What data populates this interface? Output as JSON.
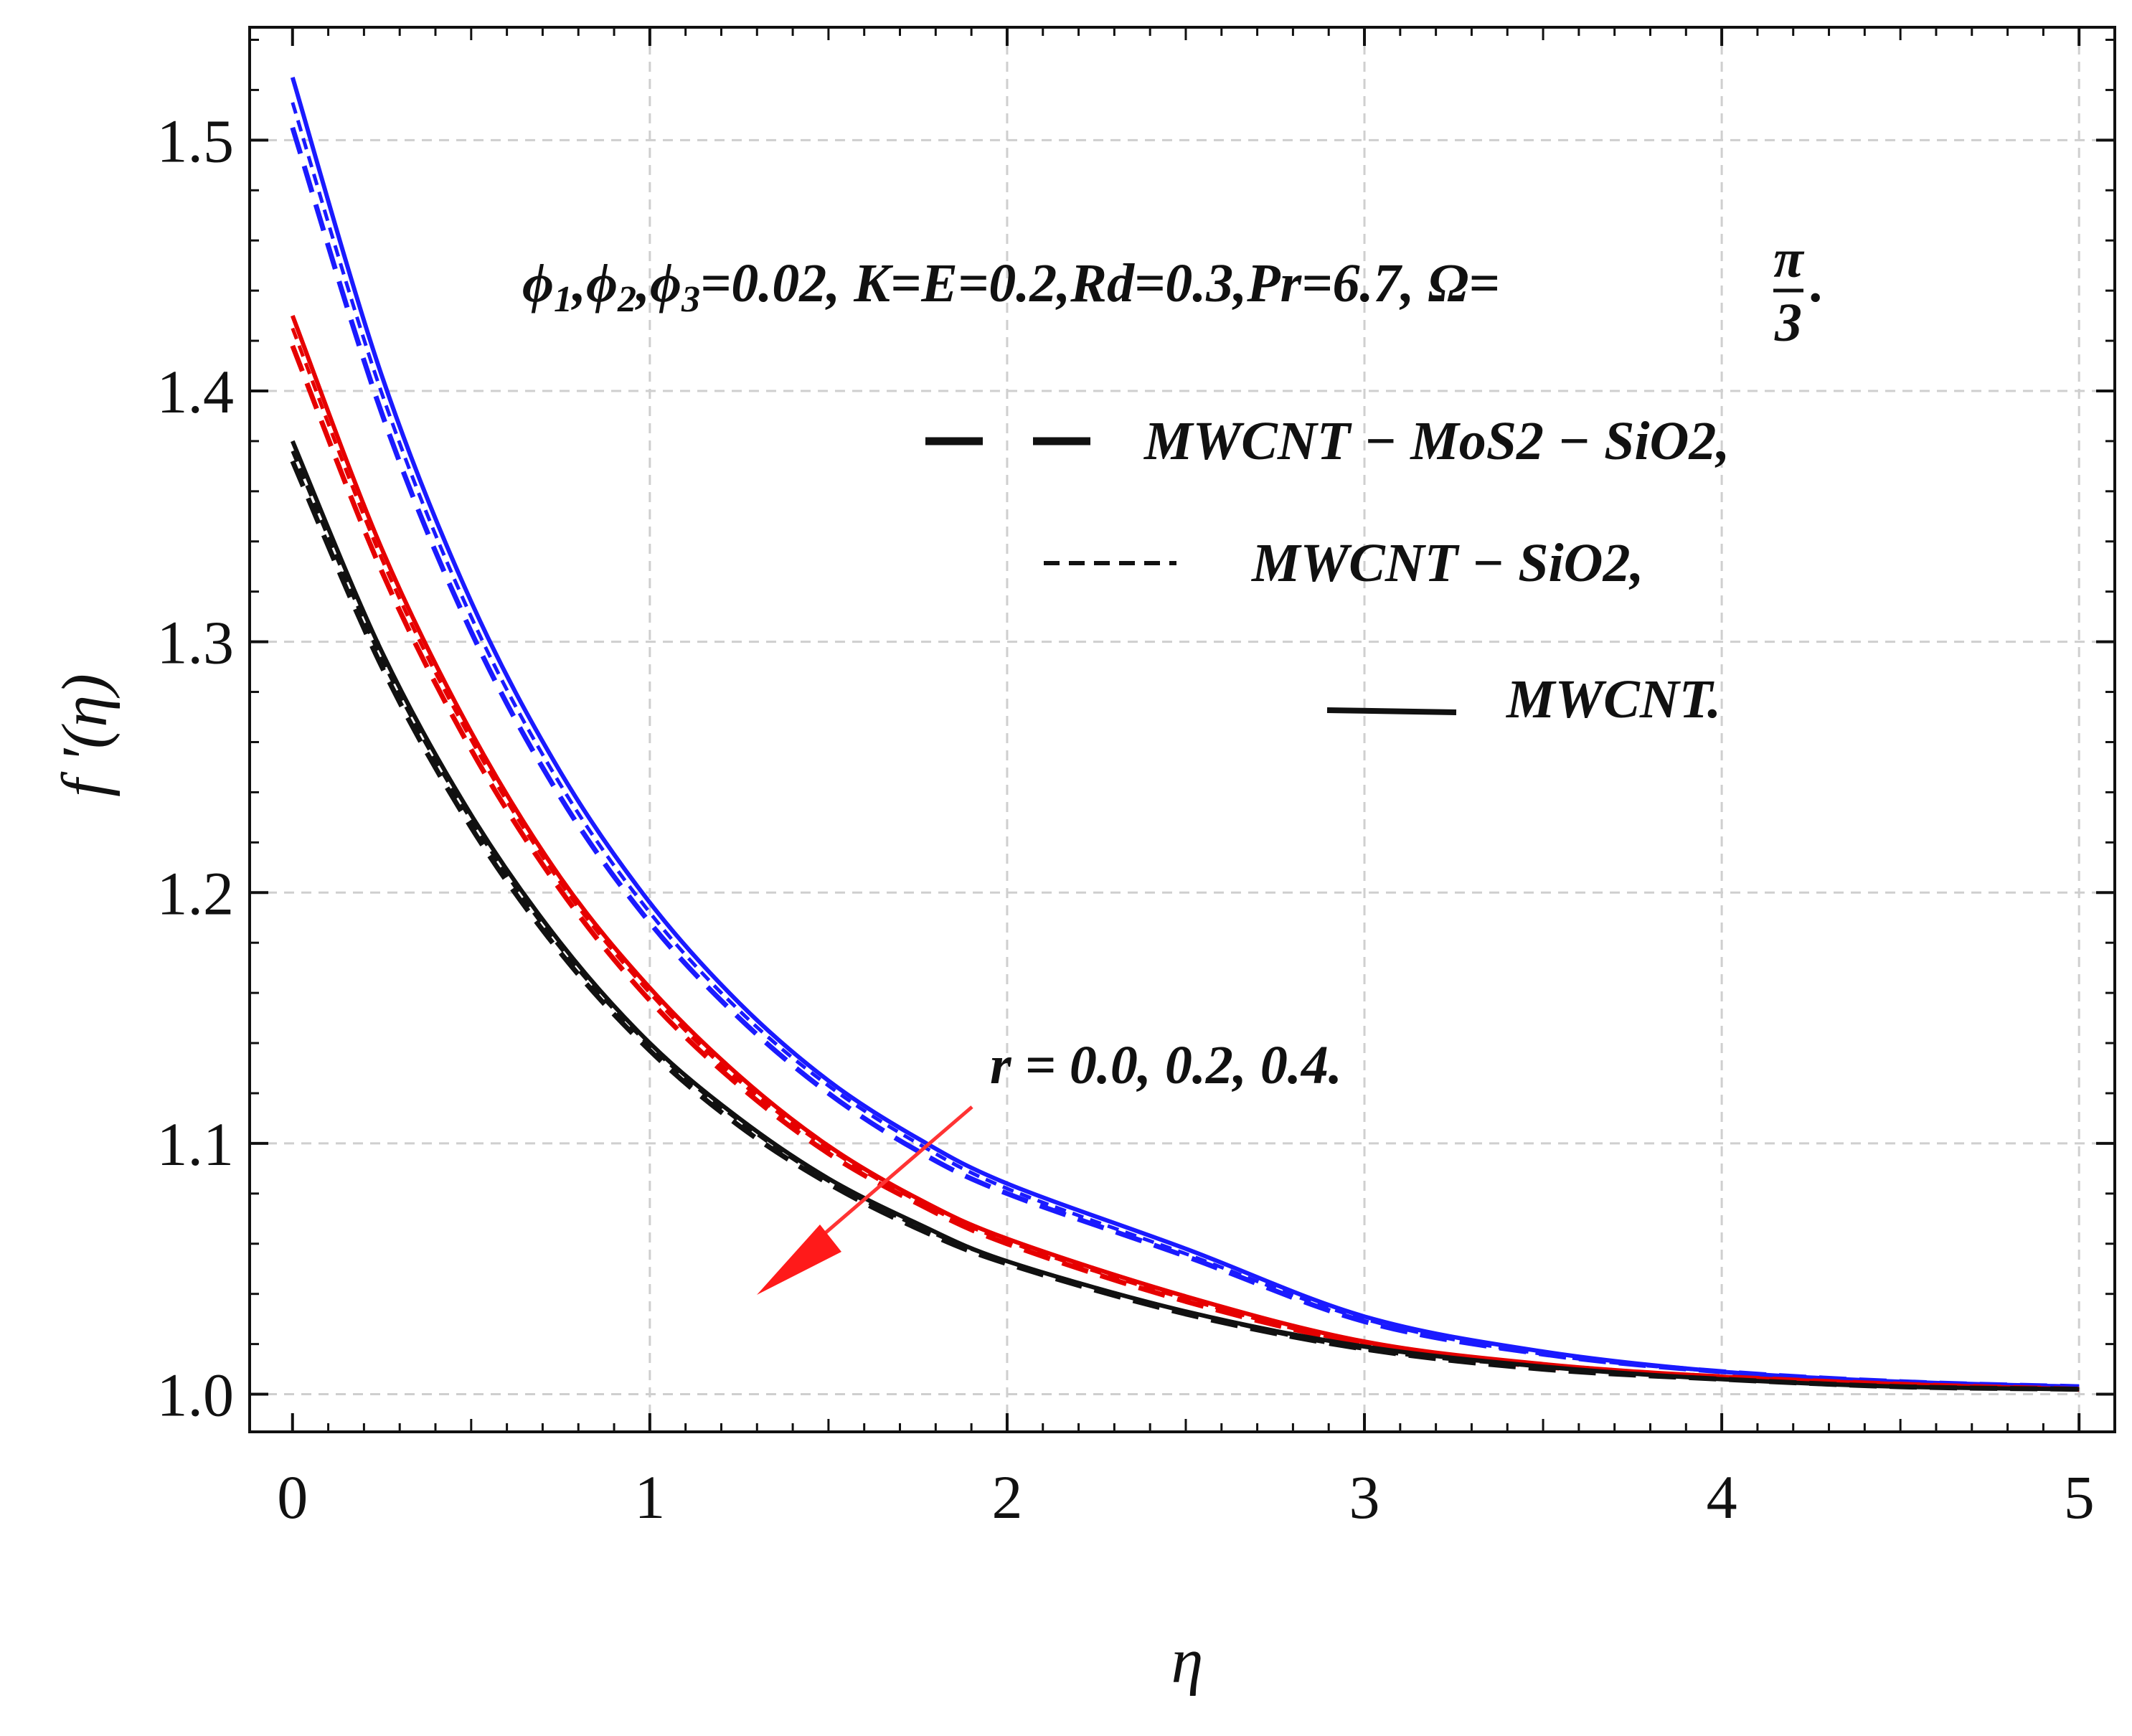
{
  "chart_data": {
    "type": "line",
    "xlabel": "η",
    "ylabel": "f ′(η)",
    "xlim": [
      -0.12,
      5.1
    ],
    "ylim": [
      0.985,
      1.545
    ],
    "x_ticks": [
      0,
      1,
      2,
      3,
      4,
      5
    ],
    "x_tick_labels": [
      "0",
      "1",
      "2",
      "3",
      "4",
      "5"
    ],
    "y_ticks": [
      1.0,
      1.1,
      1.2,
      1.3,
      1.4,
      1.5
    ],
    "y_tick_labels": [
      "1.0",
      "1.1",
      "1.2",
      "1.3",
      "1.4",
      "1.5"
    ],
    "grid": true,
    "x": [
      0,
      0.25,
      0.5,
      0.75,
      1,
      1.25,
      1.5,
      1.75,
      2,
      2.5,
      3,
      3.5,
      4,
      4.5,
      5
    ],
    "series": [
      {
        "name": "MWCNT, r = 0.0",
        "group": "r = 0.0",
        "color": "#1a1aff",
        "style": "solid",
        "values": [
          1.525,
          1.406,
          1.316,
          1.248,
          1.196,
          1.156,
          1.125,
          1.102,
          1.084,
          1.058,
          1.031,
          1.017,
          1.009,
          1.005,
          1.003
        ]
      },
      {
        "name": "MWCNT − SiO2, r = 0.0",
        "group": "r = 0.0",
        "color": "#1a1aff",
        "style": "short-dash",
        "values": [
          1.515,
          1.399,
          1.31,
          1.243,
          1.192,
          1.153,
          1.123,
          1.1,
          1.082,
          1.056,
          1.03,
          1.016,
          1.009,
          1.005,
          1.003
        ]
      },
      {
        "name": "MWCNT − MoS2 − SiO2, r = 0.0",
        "group": "r = 0.0",
        "color": "#1a1aff",
        "style": "long-dash",
        "values": [
          1.505,
          1.391,
          1.304,
          1.238,
          1.188,
          1.15,
          1.12,
          1.097,
          1.08,
          1.055,
          1.029,
          1.016,
          1.009,
          1.005,
          1.003
        ]
      },
      {
        "name": "MWCNT, r = 0.2",
        "group": "r = 0.2",
        "color": "#e60000",
        "style": "solid",
        "values": [
          1.43,
          1.337,
          1.264,
          1.206,
          1.162,
          1.127,
          1.099,
          1.078,
          1.062,
          1.039,
          1.021,
          1.012,
          1.007,
          1.004,
          1.002
        ]
      },
      {
        "name": "MWCNT − SiO2, r = 0.2",
        "group": "r = 0.2",
        "color": "#e60000",
        "style": "short-dash",
        "values": [
          1.425,
          1.333,
          1.261,
          1.204,
          1.16,
          1.125,
          1.098,
          1.077,
          1.061,
          1.038,
          1.02,
          1.012,
          1.007,
          1.004,
          1.002
        ]
      },
      {
        "name": "MWCNT − MoS2 − SiO2, r = 0.2",
        "group": "r = 0.2",
        "color": "#e60000",
        "style": "long-dash",
        "values": [
          1.418,
          1.328,
          1.257,
          1.201,
          1.157,
          1.123,
          1.096,
          1.076,
          1.06,
          1.037,
          1.02,
          1.011,
          1.007,
          1.004,
          1.002
        ]
      },
      {
        "name": "MWCNT, r = 0.4",
        "group": "r = 0.4",
        "color": "#111111",
        "style": "solid",
        "values": [
          1.38,
          1.296,
          1.231,
          1.18,
          1.14,
          1.11,
          1.086,
          1.068,
          1.053,
          1.033,
          1.019,
          1.011,
          1.006,
          1.003,
          1.002
        ]
      },
      {
        "name": "MWCNT − SiO2, r = 0.4",
        "group": "r = 0.4",
        "color": "#111111",
        "style": "short-dash",
        "values": [
          1.376,
          1.293,
          1.229,
          1.178,
          1.139,
          1.109,
          1.085,
          1.067,
          1.053,
          1.033,
          1.018,
          1.011,
          1.006,
          1.003,
          1.002
        ]
      },
      {
        "name": "MWCNT − MoS2 − SiO2, r = 0.4",
        "group": "r = 0.4",
        "color": "#111111",
        "style": "long-dash",
        "values": [
          1.372,
          1.29,
          1.226,
          1.176,
          1.137,
          1.107,
          1.084,
          1.066,
          1.052,
          1.032,
          1.018,
          1.01,
          1.006,
          1.003,
          1.002
        ]
      }
    ],
    "annotations": {
      "parameters": {
        "phi": "ϕ",
        "sub1": "1",
        "sub2": "2",
        "sub3": "3",
        "sep1": ",",
        "sep2": ",",
        "rest": "=0.02, K=E=0.2,Rd=0.3,Pr=6.7, Ω=",
        "frac_num": "π",
        "frac_den": "3",
        "tail": "."
      },
      "arrow_label": "r = 0.0, 0.2, 0.4.",
      "arrow_color": "#ff3333"
    },
    "legend": {
      "placement": "top-right",
      "entries": [
        {
          "label": "MWCNT − MoS2 − SiO2,",
          "style": "long-dash"
        },
        {
          "label": "MWCNT − SiO2,",
          "style": "short-dash"
        },
        {
          "label": "MWCNT.",
          "style": "solid"
        }
      ]
    }
  }
}
